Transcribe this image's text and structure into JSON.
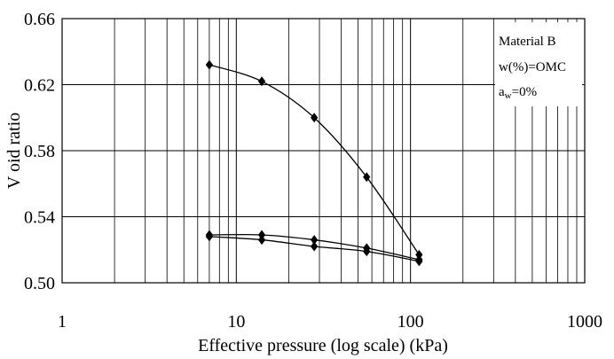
{
  "chart_data": {
    "type": "scatter",
    "xlabel": "Effective pressure (log scale) (kPa)",
    "ylabel": "V oid ratio",
    "x_scale": "log",
    "xlim": [
      1,
      1000
    ],
    "ylim": [
      0.5,
      0.66
    ],
    "x_ticks": [
      1,
      10,
      100,
      1000
    ],
    "x_tick_labels": [
      "1",
      "10",
      "100",
      "1000"
    ],
    "y_ticks": [
      0.5,
      0.54,
      0.58,
      0.62,
      0.66
    ],
    "y_tick_labels": [
      "0.50",
      "0.54",
      "0.58",
      "0.62",
      "0.66"
    ],
    "grid": true,
    "legend_position": "top-right",
    "annotation": {
      "line1": "Material B",
      "line2": "w(%)=OMC",
      "line3_main": "a",
      "line3_sub": "w",
      "line3_rest": "=0%"
    },
    "marker": "diamond",
    "color": "#000000",
    "series": [
      {
        "x": [
          7,
          14,
          28,
          56,
          112
        ],
        "y": [
          0.632,
          0.622,
          0.6,
          0.564,
          0.517
        ]
      },
      {
        "x": [
          112,
          56,
          28,
          14,
          7
        ],
        "y": [
          0.514,
          0.521,
          0.526,
          0.529,
          0.529
        ]
      },
      {
        "x": [
          7,
          14,
          28,
          56,
          112
        ],
        "y": [
          0.528,
          0.526,
          0.522,
          0.519,
          0.513
        ]
      }
    ]
  }
}
